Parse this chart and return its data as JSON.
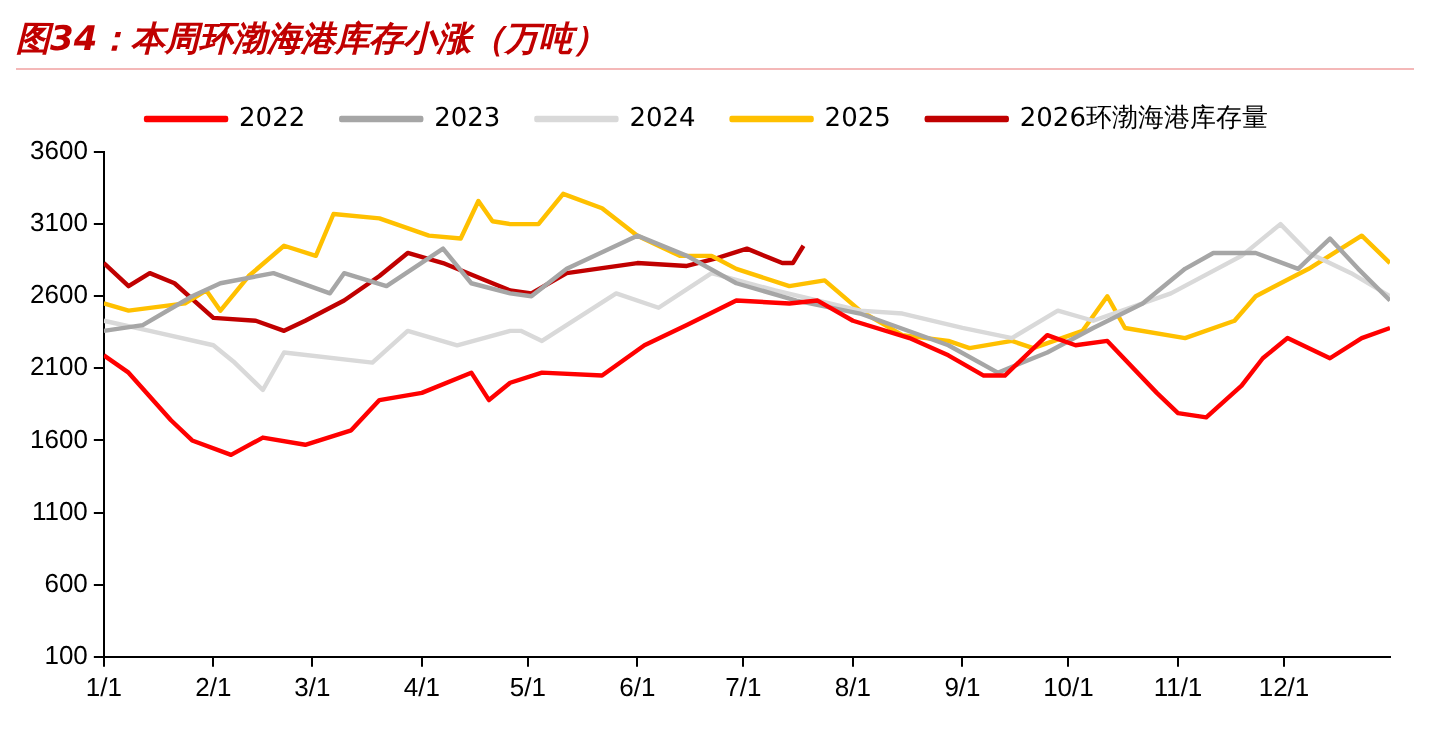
{
  "chart_data": {
    "type": "line",
    "title": "图34：本周环渤海港库存小涨（万吨）",
    "legend": "top",
    "marker": "none",
    "line_style": "solid",
    "grid": false,
    "xlim": [
      "--01-01",
      "--12-31"
    ],
    "xticks": [
      {
        "value": "--01-01",
        "label": "1/1"
      },
      {
        "value": "--02-01",
        "label": "2/1"
      },
      {
        "value": "--03-01",
        "label": "3/1"
      },
      {
        "value": "--04-01",
        "label": "4/1"
      },
      {
        "value": "--05-01",
        "label": "5/1"
      },
      {
        "value": "--06-01",
        "label": "6/1"
      },
      {
        "value": "--07-01",
        "label": "7/1"
      },
      {
        "value": "--08-01",
        "label": "8/1"
      },
      {
        "value": "--09-01",
        "label": "9/1"
      },
      {
        "value": "--10-01",
        "label": "10/1"
      },
      {
        "value": "--11-01",
        "label": "11/1"
      },
      {
        "value": "--12-01",
        "label": "12/1"
      }
    ],
    "ylim": [
      100,
      3600
    ],
    "yticks": [
      100,
      600,
      1100,
      1600,
      2100,
      2600,
      3100,
      3600
    ],
    "series": [
      {
        "name": "2022",
        "color": "#ff0000",
        "x": [
          "--01-01",
          "--01-08",
          "--01-20",
          "--01-26",
          "--02-06",
          "--02-15",
          "--02-27",
          "--03-12",
          "--03-20",
          "--04-01",
          "--04-15",
          "--04-20",
          "--04-26",
          "--05-05",
          "--05-22",
          "--06-03",
          "--06-15",
          "--06-29",
          "--07-14",
          "--07-22",
          "--08-01",
          "--08-17",
          "--08-28",
          "--09-07",
          "--09-13",
          "--09-25",
          "--10-03",
          "--10-12",
          "--10-26",
          "--11-01",
          "--11-09",
          "--11-19",
          "--11-25",
          "--12-02",
          "--12-14",
          "--12-23",
          "--12-31"
        ],
        "values": [
          2190,
          2070,
          1740,
          1600,
          1500,
          1620,
          1570,
          1670,
          1880,
          1930,
          2070,
          1880,
          2000,
          2070,
          2050,
          2260,
          2400,
          2570,
          2550,
          2570,
          2430,
          2310,
          2190,
          2050,
          2050,
          2330,
          2260,
          2290,
          1930,
          1790,
          1760,
          1980,
          2170,
          2310,
          2170,
          2310,
          2380
        ]
      },
      {
        "name": "2023",
        "color": "#a6a6a6",
        "x": [
          "--01-01",
          "--01-12",
          "--01-26",
          "--02-03",
          "--02-18",
          "--03-06",
          "--03-10",
          "--03-22",
          "--04-07",
          "--04-15",
          "--04-26",
          "--05-02",
          "--05-12",
          "--06-01",
          "--06-15",
          "--06-29",
          "--07-16",
          "--08-03",
          "--08-28",
          "--09-11",
          "--09-25",
          "--10-08",
          "--10-22",
          "--11-03",
          "--11-11",
          "--11-23",
          "--12-05",
          "--12-14",
          "--12-22",
          "--12-31"
        ],
        "values": [
          2360,
          2400,
          2600,
          2690,
          2760,
          2620,
          2760,
          2670,
          2930,
          2690,
          2620,
          2600,
          2790,
          3020,
          2880,
          2690,
          2570,
          2480,
          2260,
          2070,
          2210,
          2380,
          2550,
          2790,
          2900,
          2900,
          2790,
          3000,
          2790,
          2570
        ]
      },
      {
        "name": "2024",
        "color": "#d9d9d9",
        "x": [
          "--01-01",
          "--01-14",
          "--02-01",
          "--02-07",
          "--02-15",
          "--02-21",
          "--03-18",
          "--03-28",
          "--04-11",
          "--04-26",
          "--04-29",
          "--05-05",
          "--05-26",
          "--06-07",
          "--06-22",
          "--07-10",
          "--08-03",
          "--08-15",
          "--09-01",
          "--09-15",
          "--09-28",
          "--10-08",
          "--10-30",
          "--11-19",
          "--11-30",
          "--12-08",
          "--12-20",
          "--12-31"
        ],
        "values": [
          2430,
          2360,
          2260,
          2140,
          1950,
          2210,
          2140,
          2360,
          2260,
          2360,
          2360,
          2290,
          2620,
          2520,
          2760,
          2640,
          2500,
          2480,
          2380,
          2310,
          2500,
          2430,
          2620,
          2880,
          3100,
          2900,
          2760,
          2600
        ]
      },
      {
        "name": "2025",
        "color": "#ffc000",
        "x": [
          "--01-01",
          "--01-08",
          "--01-24",
          "--01-30",
          "--02-03",
          "--02-11",
          "--02-21",
          "--03-02",
          "--03-07",
          "--03-20",
          "--04-03",
          "--04-12",
          "--04-17",
          "--04-21",
          "--04-26",
          "--05-04",
          "--05-11",
          "--05-22",
          "--06-01",
          "--06-13",
          "--06-22",
          "--06-29",
          "--07-14",
          "--07-24",
          "--08-03",
          "--08-15",
          "--08-28",
          "--09-03",
          "--09-15",
          "--09-21",
          "--10-05",
          "--10-12",
          "--10-17",
          "--11-03",
          "--11-17",
          "--11-23",
          "--12-08",
          "--12-23",
          "--12-31"
        ],
        "values": [
          2550,
          2500,
          2550,
          2640,
          2500,
          2740,
          2950,
          2880,
          3170,
          3140,
          3020,
          3000,
          3260,
          3120,
          3100,
          3100,
          3310,
          3210,
          3020,
          2880,
          2880,
          2790,
          2670,
          2710,
          2500,
          2330,
          2290,
          2240,
          2290,
          2240,
          2360,
          2600,
          2380,
          2310,
          2430,
          2600,
          2790,
          3020,
          2830
        ]
      },
      {
        "name": "2026环渤海港库存量",
        "color": "#c00000",
        "x": [
          "--01-01",
          "--01-08",
          "--01-14",
          "--01-21",
          "--02-01",
          "--02-13",
          "--02-21",
          "--02-27",
          "--03-10",
          "--03-20",
          "--03-28",
          "--04-07",
          "--04-21",
          "--04-26",
          "--05-02",
          "--05-12",
          "--06-01",
          "--06-15",
          "--06-23",
          "--07-02",
          "--07-12",
          "--07-15",
          "--07-18"
        ],
        "values": [
          2830,
          2670,
          2760,
          2690,
          2450,
          2430,
          2360,
          2430,
          2570,
          2740,
          2900,
          2830,
          2690,
          2640,
          2620,
          2760,
          2830,
          2810,
          2860,
          2930,
          2830,
          2830,
          2950
        ]
      }
    ]
  }
}
